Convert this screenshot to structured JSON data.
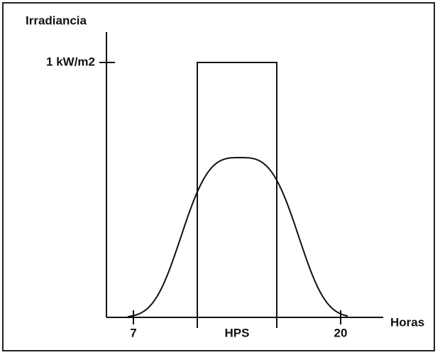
{
  "title": "Irradiancia",
  "level_label": "1 kW/m2",
  "x_labels": [
    "7",
    "20"
  ],
  "band_label": "HPS",
  "x_axis_label": "Horas"
}
